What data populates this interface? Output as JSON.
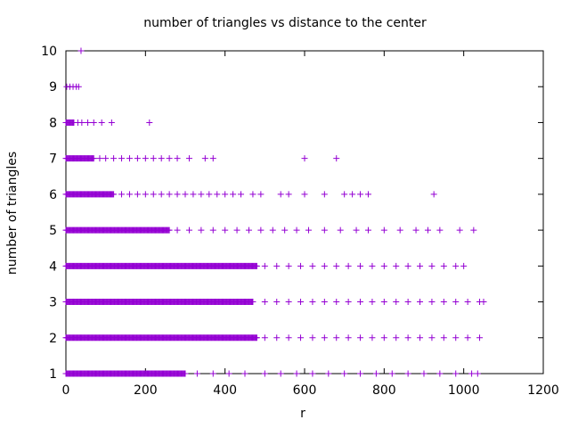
{
  "chart_data": {
    "type": "scatter",
    "title": "number of triangles vs distance to the center",
    "xlabel": "r",
    "ylabel": "number of triangles",
    "xlim": [
      0,
      1200
    ],
    "ylim": [
      1,
      10
    ],
    "xticks": [
      "0",
      "200",
      "400",
      "600",
      "800",
      "1000",
      "1200"
    ],
    "yticks": [
      "1",
      "2",
      "3",
      "4",
      "5",
      "6",
      "7",
      "8",
      "9",
      "10"
    ],
    "grid": false,
    "legend": "none",
    "marker": "+",
    "color": "#9400d3",
    "bands": [
      {
        "y": 1,
        "dense_to": 300,
        "sparse": [
          330,
          370,
          410,
          450,
          500,
          540,
          580,
          620,
          660,
          700,
          740,
          780,
          820,
          860,
          900,
          940,
          980,
          1020,
          1035
        ]
      },
      {
        "y": 2,
        "dense_to": 480,
        "sparse": [
          500,
          530,
          560,
          590,
          620,
          650,
          680,
          710,
          740,
          770,
          800,
          830,
          860,
          890,
          920,
          950,
          980,
          1010,
          1040
        ]
      },
      {
        "y": 3,
        "dense_to": 470,
        "sparse": [
          500,
          530,
          560,
          590,
          620,
          650,
          680,
          710,
          740,
          770,
          800,
          830,
          860,
          890,
          920,
          950,
          980,
          1010,
          1040,
          1050
        ]
      },
      {
        "y": 4,
        "dense_to": 480,
        "sparse": [
          500,
          530,
          560,
          590,
          620,
          650,
          680,
          710,
          740,
          770,
          800,
          830,
          860,
          890,
          920,
          950,
          980,
          1000
        ]
      },
      {
        "y": 5,
        "dense_to": 260,
        "sparse": [
          280,
          310,
          340,
          370,
          400,
          430,
          460,
          490,
          520,
          550,
          580,
          610,
          650,
          690,
          730,
          760,
          800,
          840,
          880,
          910,
          940,
          990,
          1025
        ]
      },
      {
        "y": 6,
        "dense_to": 120,
        "sparse": [
          140,
          160,
          180,
          200,
          220,
          240,
          260,
          280,
          300,
          320,
          340,
          360,
          380,
          400,
          420,
          440,
          470,
          490,
          540,
          560,
          600,
          650,
          700,
          720,
          740,
          760,
          925
        ]
      },
      {
        "y": 7,
        "dense_to": 70,
        "sparse": [
          85,
          100,
          120,
          140,
          160,
          180,
          200,
          220,
          240,
          260,
          280,
          310,
          350,
          370,
          600,
          680
        ]
      },
      {
        "y": 8,
        "dense_to": 20,
        "sparse": [
          30,
          40,
          55,
          70,
          90,
          115,
          210
        ]
      },
      {
        "y": 9,
        "sparse": [
          2,
          10,
          18,
          26,
          32
        ]
      },
      {
        "y": 10,
        "sparse": [
          38
        ]
      }
    ]
  }
}
